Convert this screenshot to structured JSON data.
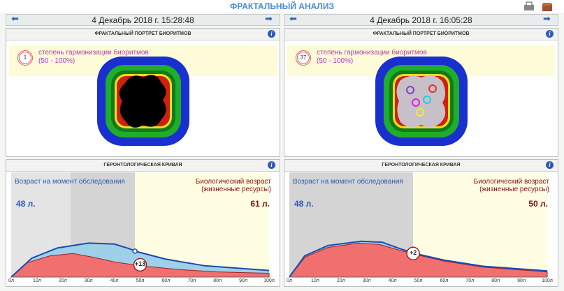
{
  "header": {
    "title": "ФРАКТАЛЬНЫЙ АНАЛИЗ"
  },
  "panels": [
    {
      "timestamp": "4 Декабрь 2018 г. 15:28:48",
      "fractal": {
        "title": "ФРАКТАЛЬНЫЙ ПОРТРЕТ БИОРИТМОВ",
        "score": 1,
        "label": "степень гармонизации биоритмов",
        "range": "(50 - 100%)"
      },
      "geronto": {
        "title": "ГЕРОНТОЛОГИЧЕСКАЯ КРИВАЯ",
        "age_label": "Возраст на момент обследования",
        "age": "48 л.",
        "bio_label": "Биологический возраст (жизненные ресурсы)",
        "bio_age": "61 л.",
        "delta": "+13",
        "xticks": [
          "0л",
          "10л",
          "20л",
          "30л",
          "40л",
          "50л",
          "60л",
          "70л",
          "80л",
          "90л",
          "100л"
        ]
      }
    },
    {
      "timestamp": "4 Декабрь 2018 г. 16:05:28",
      "fractal": {
        "title": "ФРАКТАЛЬНЫЙ ПОРТРЕТ БИОРИТМОВ",
        "score": 37,
        "label": "степень гармонизации биоритмов",
        "range": "(50 - 100%)"
      },
      "geronto": {
        "title": "ГЕРОНТОЛОГИЧЕСКАЯ КРИВАЯ",
        "age_label": "Возраст на момент обследования",
        "age": "48 л.",
        "bio_label": "Биологический возраст (жизненные ресурсы)",
        "bio_age": "50 л.",
        "delta": "+2",
        "xticks": [
          "0л",
          "10л",
          "20л",
          "30л",
          "40л",
          "50л",
          "60л",
          "70л",
          "80л",
          "90л",
          "100л"
        ]
      }
    }
  ]
}
